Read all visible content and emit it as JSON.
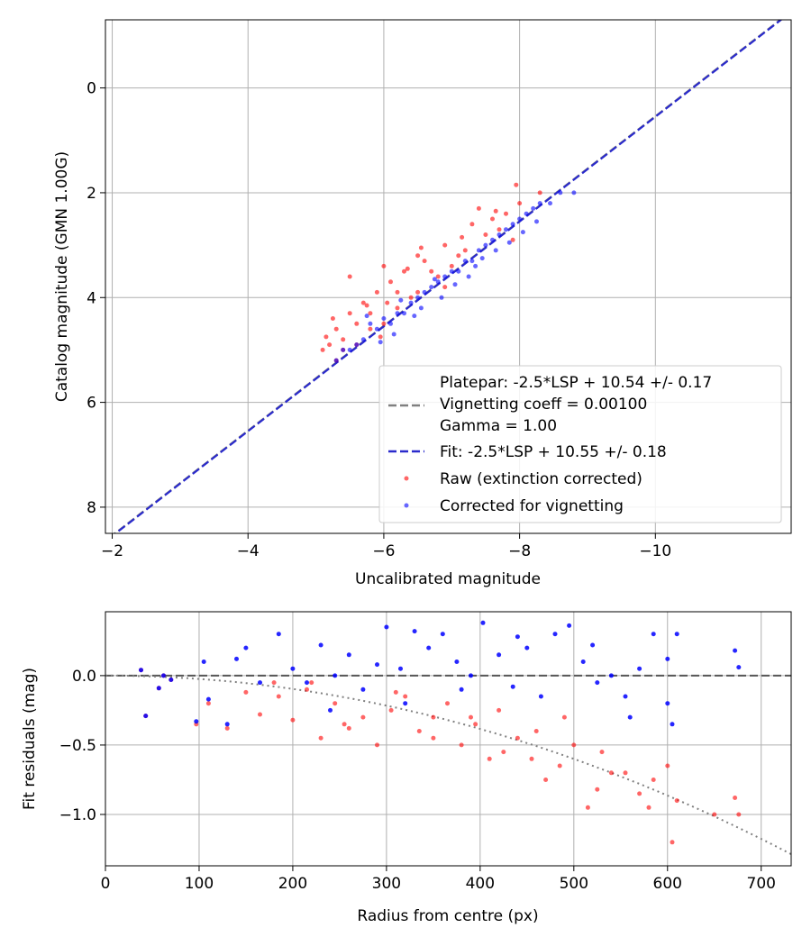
{
  "chart_data": [
    {
      "type": "scatter",
      "xlabel": "Uncalibrated magnitude",
      "ylabel": "Catalog magnitude (GMN 1.00G)",
      "xlim": [
        -1.9,
        -12.0
      ],
      "ylim": [
        8.5,
        -1.3
      ],
      "xticks": [
        -2,
        -4,
        -6,
        -8,
        -10
      ],
      "xtick_labels": [
        "−2",
        "−4",
        "−6",
        "−8",
        "−10"
      ],
      "yticks": [
        0,
        2,
        4,
        6,
        8
      ],
      "ytick_labels": [
        "0",
        "2",
        "4",
        "6",
        "8"
      ],
      "grid": true,
      "legend_position": "lower-right",
      "legend": {
        "platepar_text": "Platepar: -2.5*LSP + 10.54 +/- 0.17",
        "vignetting_text": "Vignetting coeff = 0.00100",
        "gamma_text": "Gamma = 1.00",
        "fit_label": "Fit: -2.5*LSP + 10.55 +/- 0.18",
        "raw_label": "Raw (extinction corrected)",
        "corrected_label": "Corrected for vignetting"
      },
      "lines": [
        {
          "name": "Platepar",
          "style": "dashed",
          "color": "#808080",
          "intercept": 10.54,
          "slope": 1.0
        },
        {
          "name": "Fit",
          "style": "dashed",
          "color": "#2a2acc",
          "intercept": 10.55,
          "slope": 1.0
        }
      ],
      "series": [
        {
          "name": "Raw (extinction corrected)",
          "color": "#ff0000",
          "opacity": 0.6,
          "points": [
            [
              -5.2,
              4.9
            ],
            [
              -5.4,
              4.8
            ],
            [
              -5.6,
              4.5
            ],
            [
              -5.8,
              4.3
            ],
            [
              -6.0,
              4.5
            ],
            [
              -6.2,
              4.2
            ],
            [
              -6.5,
              3.9
            ],
            [
              -6.8,
              3.6
            ],
            [
              -7.0,
              3.4
            ],
            [
              -7.2,
              3.1
            ],
            [
              -7.5,
              2.8
            ],
            [
              -7.8,
              2.4
            ],
            [
              -8.0,
              2.2
            ],
            [
              -5.3,
              4.6
            ],
            [
              -5.5,
              4.3
            ],
            [
              -5.7,
              4.1
            ],
            [
              -5.9,
              3.9
            ],
            [
              -6.1,
              3.7
            ],
            [
              -6.3,
              3.5
            ],
            [
              -6.6,
              3.3
            ],
            [
              -6.9,
              3.0
            ],
            [
              -7.3,
              2.6
            ],
            [
              -7.6,
              2.5
            ],
            [
              -5.1,
              5.0
            ],
            [
              -5.4,
              5.0
            ],
            [
              -5.8,
              4.6
            ],
            [
              -6.4,
              4.0
            ],
            [
              -7.1,
              3.2
            ],
            [
              -7.7,
              2.7
            ],
            [
              -6.7,
              3.5
            ],
            [
              -5.5,
              3.6
            ],
            [
              -6.0,
              3.4
            ],
            [
              -6.5,
              3.2
            ],
            [
              -7.4,
              2.3
            ],
            [
              -7.9,
              2.9
            ],
            [
              -5.6,
              4.9
            ],
            [
              -6.2,
              3.9
            ],
            [
              -6.9,
              3.8
            ],
            [
              -5.3,
              5.2
            ],
            [
              -8.3,
              2.0
            ],
            [
              -7.95,
              1.85
            ],
            [
              -6.05,
              4.1
            ],
            [
              -5.25,
              4.4
            ],
            [
              -5.15,
              4.75
            ],
            [
              -5.95,
              4.75
            ],
            [
              -6.35,
              3.45
            ],
            [
              -7.15,
              2.85
            ],
            [
              -7.65,
              2.35
            ],
            [
              -6.55,
              3.05
            ],
            [
              -5.75,
              4.15
            ]
          ]
        },
        {
          "name": "Corrected for vignetting",
          "color": "#0000ff",
          "opacity": 0.6,
          "points": [
            [
              -5.3,
              5.2
            ],
            [
              -5.5,
              5.0
            ],
            [
              -5.7,
              4.8
            ],
            [
              -5.9,
              4.6
            ],
            [
              -6.1,
              4.5
            ],
            [
              -6.3,
              4.3
            ],
            [
              -6.5,
              4.0
            ],
            [
              -6.7,
              3.8
            ],
            [
              -6.9,
              3.6
            ],
            [
              -7.1,
              3.5
            ],
            [
              -7.3,
              3.3
            ],
            [
              -7.5,
              3.0
            ],
            [
              -7.7,
              2.8
            ],
            [
              -7.9,
              2.6
            ],
            [
              -8.1,
              2.4
            ],
            [
              -8.3,
              2.2
            ],
            [
              -8.6,
              2.0
            ],
            [
              -8.8,
              2.0
            ],
            [
              -5.6,
              4.9
            ],
            [
              -5.8,
              4.5
            ],
            [
              -6.0,
              4.4
            ],
            [
              -6.2,
              4.3
            ],
            [
              -6.4,
              4.1
            ],
            [
              -6.6,
              3.9
            ],
            [
              -6.8,
              3.7
            ],
            [
              -7.0,
              3.5
            ],
            [
              -7.2,
              3.3
            ],
            [
              -7.4,
              3.1
            ],
            [
              -7.6,
              2.9
            ],
            [
              -7.8,
              2.7
            ],
            [
              -8.0,
              2.5
            ],
            [
              -8.2,
              2.3
            ],
            [
              -5.4,
              5.0
            ],
            [
              -6.15,
              4.7
            ],
            [
              -6.45,
              4.35
            ],
            [
              -6.85,
              4.0
            ],
            [
              -7.25,
              3.6
            ],
            [
              -7.65,
              3.1
            ],
            [
              -8.05,
              2.75
            ],
            [
              -8.45,
              2.2
            ],
            [
              -5.95,
              4.85
            ],
            [
              -6.55,
              4.2
            ],
            [
              -7.05,
              3.75
            ],
            [
              -7.45,
              3.25
            ],
            [
              -7.85,
              2.95
            ],
            [
              -8.25,
              2.55
            ],
            [
              -6.75,
              3.65
            ],
            [
              -7.35,
              3.4
            ],
            [
              -5.75,
              4.35
            ],
            [
              -6.25,
              4.05
            ]
          ]
        }
      ]
    },
    {
      "type": "scatter",
      "xlabel": "Radius from centre (px)",
      "ylabel": "Fit residuals (mag)",
      "xlim": [
        0,
        732
      ],
      "ylim": [
        -1.37,
        0.46
      ],
      "xticks": [
        0,
        100,
        200,
        300,
        400,
        500,
        600,
        700
      ],
      "xtick_labels": [
        "0",
        "100",
        "200",
        "300",
        "400",
        "500",
        "600",
        "700"
      ],
      "yticks": [
        0.0,
        -0.5,
        -1.0
      ],
      "ytick_labels": [
        "0.0",
        "−0.5",
        "−1.0"
      ],
      "grid": true,
      "lines": [
        {
          "name": "zero",
          "style": "dashed",
          "color": "#555555",
          "value": 0.0
        },
        {
          "name": "vignetting model",
          "style": "dotted",
          "color": "#808080",
          "coeff": 0.001
        }
      ],
      "series": [
        {
          "name": "Raw (extinction corrected)",
          "color": "#ff0000",
          "opacity": 0.6,
          "points": [
            [
              38,
              0.04
            ],
            [
              43,
              -0.29
            ],
            [
              57,
              -0.09
            ],
            [
              62,
              0.0
            ],
            [
              70,
              -0.03
            ],
            [
              97,
              -0.35
            ],
            [
              110,
              -0.2
            ],
            [
              130,
              -0.38
            ],
            [
              150,
              -0.12
            ],
            [
              165,
              -0.28
            ],
            [
              185,
              -0.15
            ],
            [
              200,
              -0.32
            ],
            [
              215,
              -0.1
            ],
            [
              230,
              -0.45
            ],
            [
              245,
              -0.2
            ],
            [
              260,
              -0.38
            ],
            [
              275,
              -0.3
            ],
            [
              290,
              -0.5
            ],
            [
              305,
              -0.25
            ],
            [
              320,
              -0.15
            ],
            [
              335,
              -0.4
            ],
            [
              350,
              -0.3
            ],
            [
              365,
              -0.2
            ],
            [
              380,
              -0.5
            ],
            [
              395,
              -0.35
            ],
            [
              410,
              -0.6
            ],
            [
              425,
              -0.55
            ],
            [
              440,
              -0.45
            ],
            [
              455,
              -0.6
            ],
            [
              470,
              -0.75
            ],
            [
              485,
              -0.65
            ],
            [
              500,
              -0.5
            ],
            [
              515,
              -0.95
            ],
            [
              525,
              -0.82
            ],
            [
              540,
              -0.7
            ],
            [
              555,
              -0.7
            ],
            [
              570,
              -0.85
            ],
            [
              585,
              -0.75
            ],
            [
              600,
              -0.65
            ],
            [
              605,
              -1.2
            ],
            [
              610,
              -0.9
            ],
            [
              650,
              -1.0
            ],
            [
              672,
              -0.88
            ],
            [
              676,
              -1.0
            ],
            [
              220,
              -0.05
            ],
            [
              310,
              -0.12
            ],
            [
              390,
              -0.3
            ],
            [
              460,
              -0.4
            ],
            [
              530,
              -0.55
            ],
            [
              580,
              -0.95
            ],
            [
              350,
              -0.45
            ],
            [
              255,
              -0.35
            ],
            [
              180,
              -0.05
            ],
            [
              420,
              -0.25
            ],
            [
              490,
              -0.3
            ]
          ]
        },
        {
          "name": "Corrected for vignetting",
          "color": "#0000ff",
          "opacity": 0.85,
          "points": [
            [
              38,
              0.04
            ],
            [
              43,
              -0.29
            ],
            [
              57,
              -0.09
            ],
            [
              62,
              0.0
            ],
            [
              70,
              -0.03
            ],
            [
              97,
              -0.33
            ],
            [
              105,
              0.1
            ],
            [
              110,
              -0.17
            ],
            [
              130,
              -0.35
            ],
            [
              140,
              0.12
            ],
            [
              150,
              0.2
            ],
            [
              165,
              -0.05
            ],
            [
              185,
              0.3
            ],
            [
              200,
              0.05
            ],
            [
              215,
              -0.05
            ],
            [
              230,
              0.22
            ],
            [
              245,
              0.0
            ],
            [
              260,
              0.15
            ],
            [
              275,
              -0.1
            ],
            [
              290,
              0.08
            ],
            [
              300,
              0.35
            ],
            [
              315,
              0.05
            ],
            [
              330,
              0.32
            ],
            [
              345,
              0.2
            ],
            [
              360,
              0.3
            ],
            [
              375,
              0.1
            ],
            [
              390,
              0.0
            ],
            [
              403,
              0.38
            ],
            [
              420,
              0.15
            ],
            [
              435,
              -0.08
            ],
            [
              450,
              0.2
            ],
            [
              465,
              -0.15
            ],
            [
              480,
              0.3
            ],
            [
              495,
              0.36
            ],
            [
              510,
              0.1
            ],
            [
              525,
              -0.05
            ],
            [
              540,
              0.0
            ],
            [
              555,
              -0.15
            ],
            [
              570,
              0.05
            ],
            [
              585,
              0.3
            ],
            [
              600,
              0.12
            ],
            [
              605,
              -0.35
            ],
            [
              610,
              0.3
            ],
            [
              672,
              0.18
            ],
            [
              676,
              0.06
            ],
            [
              240,
              -0.25
            ],
            [
              320,
              -0.2
            ],
            [
              380,
              -0.1
            ],
            [
              440,
              0.28
            ],
            [
              520,
              0.22
            ],
            [
              560,
              -0.3
            ],
            [
              600,
              -0.2
            ]
          ]
        }
      ]
    }
  ]
}
